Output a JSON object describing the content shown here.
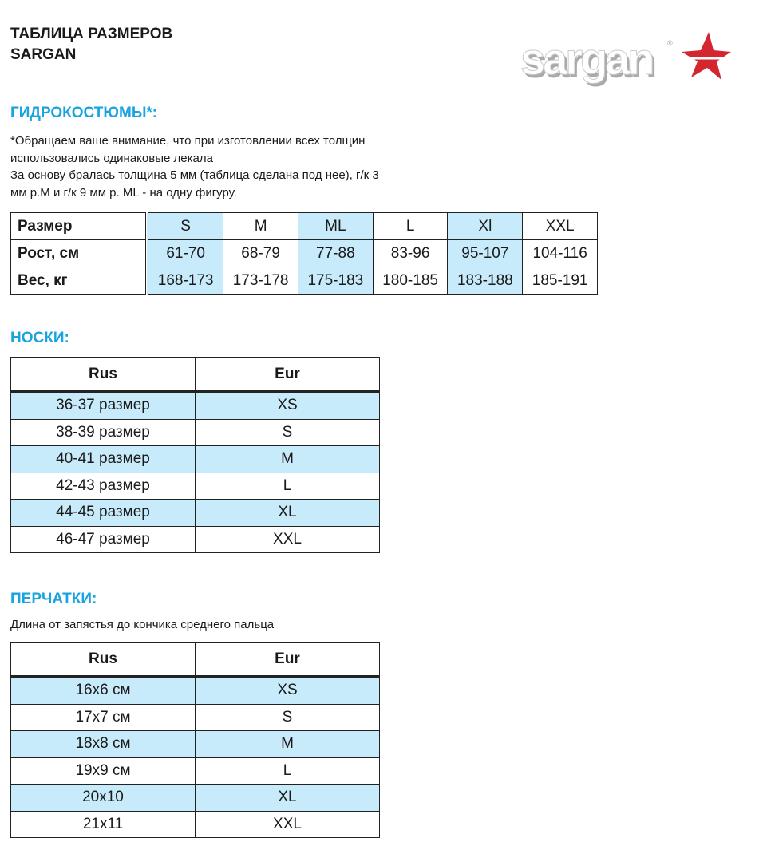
{
  "header": {
    "title_line1": "ТАБЛИЦА РАЗМЕРОВ",
    "title_line2": "SARGAN",
    "logo_text": "sargan"
  },
  "colors": {
    "heading": "#19a3df",
    "highlight": "#c8ebfb",
    "logo_star": "#d3262f"
  },
  "wetsuits": {
    "heading": "ГИДРОКОСТЮМЫ*:",
    "note": [
      "*Обращаем ваше внимание, что при изготовлении всех толщин",
      "использовались одинаковые лекала",
      "За основу бралась толщина 5 мм (таблица сделана под нее), г/к 3",
      "мм р.М и г/к 9 мм р. ML - на одну фигуру."
    ],
    "rows": [
      {
        "label": "Размер",
        "values": [
          "S",
          "M",
          "ML",
          "L",
          "Xl",
          "XXL"
        ]
      },
      {
        "label": "Рост, см",
        "values": [
          "61-70",
          "68-79",
          "77-88",
          "83-96",
          "95-107",
          "104-116"
        ]
      },
      {
        "label": "Вес, кг",
        "values": [
          "168-173",
          "173-178",
          "175-183",
          "180-185",
          "183-188",
          "185-191"
        ]
      }
    ]
  },
  "socks": {
    "heading": "НОСКИ:",
    "columns": [
      "Rus",
      "Eur"
    ],
    "rows": [
      [
        "36-37 размер",
        "XS"
      ],
      [
        "38-39 размер",
        "S"
      ],
      [
        "40-41 размер",
        "M"
      ],
      [
        "42-43 размер",
        "L"
      ],
      [
        "44-45 размер",
        "XL"
      ],
      [
        "46-47 размер",
        "XXL"
      ]
    ]
  },
  "gloves": {
    "heading": "ПЕРЧАТКИ:",
    "subtitle": "Длина от запястья до кончика среднего пальца",
    "columns": [
      "Rus",
      "Eur"
    ],
    "rows": [
      [
        "16х6 см",
        "XS"
      ],
      [
        "17х7 см",
        "S"
      ],
      [
        "18х8 см",
        "M"
      ],
      [
        "19х9 см",
        "L"
      ],
      [
        "20х10",
        "XL"
      ],
      [
        "21х11",
        "XXL"
      ]
    ]
  }
}
